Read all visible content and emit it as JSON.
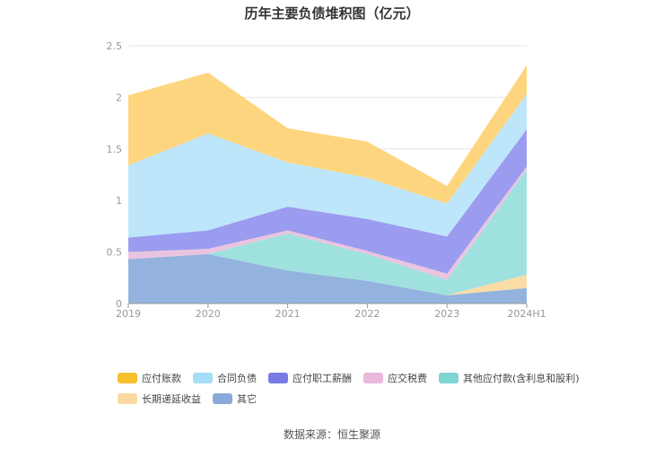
{
  "chart_data": {
    "type": "area",
    "stacked": true,
    "title": "历年主要负债堆积图（亿元）",
    "x": [
      "2019",
      "2020",
      "2021",
      "2022",
      "2023",
      "2024H1"
    ],
    "ylim": [
      0,
      2.5
    ],
    "yticks": [
      "0",
      "0.5",
      "1",
      "1.5",
      "2",
      "2.5"
    ],
    "grid": true,
    "legend_position": "bottom",
    "series": [
      {
        "name": "其它",
        "color": "#93B3DE",
        "values": [
          0.43,
          0.48,
          0.32,
          0.22,
          0.08,
          0.15
        ]
      },
      {
        "name": "长期递延收益",
        "color": "#FCDCA6",
        "values": [
          0.0,
          0.0,
          0.0,
          0.0,
          0.0,
          0.13
        ]
      },
      {
        "name": "其他应付款(含利息和股利)",
        "color": "#9FE1DF",
        "values": [
          0.0,
          0.0,
          0.36,
          0.26,
          0.15,
          1.02
        ]
      },
      {
        "name": "应交税费",
        "color": "#EAC4DF",
        "values": [
          0.07,
          0.05,
          0.03,
          0.03,
          0.06,
          0.03
        ]
      },
      {
        "name": "应付职工薪酬",
        "color": "#9B9CF0",
        "values": [
          0.14,
          0.18,
          0.23,
          0.31,
          0.36,
          0.36
        ]
      },
      {
        "name": "合同负债",
        "color": "#BEE6FA",
        "values": [
          0.7,
          0.94,
          0.43,
          0.4,
          0.32,
          0.34
        ]
      },
      {
        "name": "应付账款",
        "color": "#FDD57E",
        "values": [
          0.68,
          0.59,
          0.33,
          0.35,
          0.17,
          0.28
        ]
      }
    ]
  },
  "legend": {
    "rows": [
      [
        {
          "label": "应付账款",
          "color": "#F8C02C"
        },
        {
          "label": "合同负债",
          "color": "#A5DDF8"
        },
        {
          "label": "应付职工薪酬",
          "color": "#7A7AE6"
        },
        {
          "label": "应交税费",
          "color": "#E8B9DA"
        },
        {
          "label": "其他应付款(含利息和股利)",
          "color": "#7ED6D3"
        }
      ],
      [
        {
          "label": "长期递延收益",
          "color": "#FCD9A0"
        },
        {
          "label": "其它",
          "color": "#8AAAD9"
        }
      ]
    ]
  },
  "source": "数据来源：恒生聚源"
}
